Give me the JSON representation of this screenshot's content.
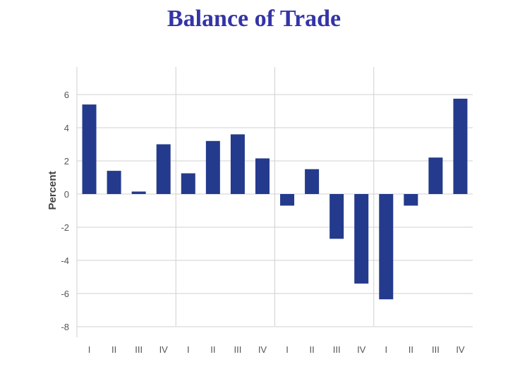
{
  "title": "Balance of Trade",
  "chart_data": {
    "type": "bar",
    "title": "Balance of Trade",
    "xlabel": "",
    "ylabel": "Percent",
    "ylim": [
      -8,
      7
    ],
    "yticks": [
      6,
      4,
      2,
      0,
      -2,
      -4,
      -6,
      -8
    ],
    "grid": true,
    "categories": [
      "I",
      "II",
      "III",
      "IV",
      "I",
      "II",
      "III",
      "IV",
      "I",
      "II",
      "III",
      "IV",
      "I",
      "II",
      "III",
      "IV"
    ],
    "values": [
      5.4,
      1.4,
      0.15,
      3.0,
      1.25,
      3.2,
      3.6,
      2.15,
      -0.7,
      1.5,
      -2.7,
      -5.4,
      -6.35,
      -0.7,
      2.2,
      5.75
    ],
    "bar_color": "#243a8c"
  }
}
